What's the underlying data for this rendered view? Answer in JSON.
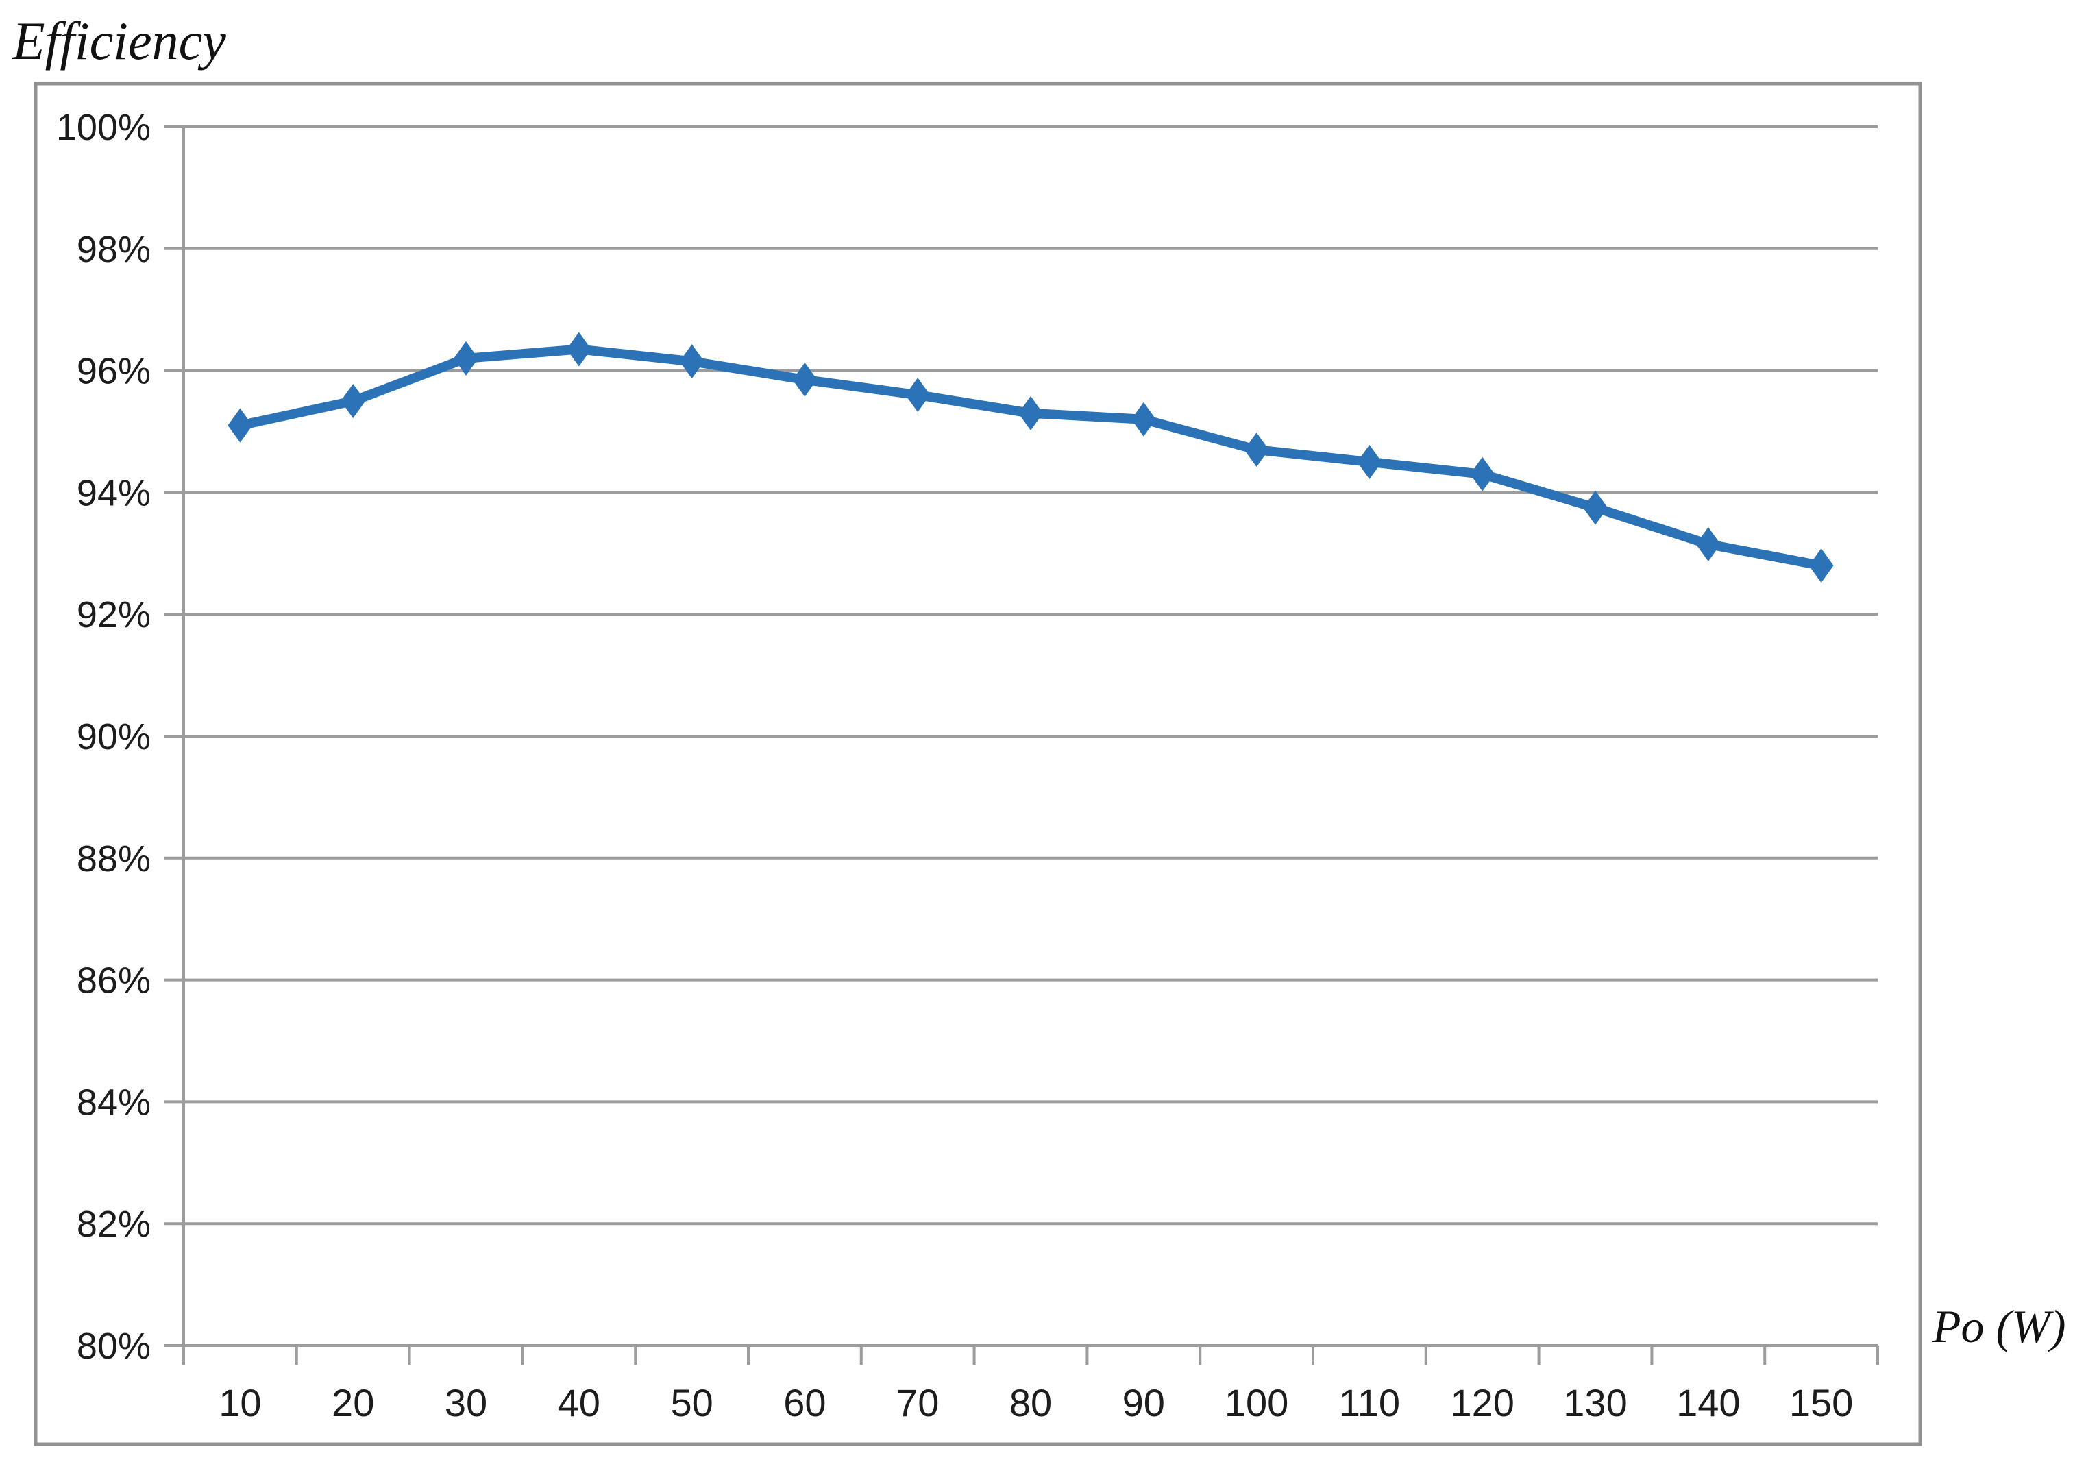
{
  "chart": {
    "title": "Efficiency",
    "x_axis_label": "Po (W)"
  },
  "chart_data": {
    "type": "line",
    "title": "Efficiency",
    "xlabel": "Po (W)",
    "ylabel": "Efficiency",
    "x": [
      10,
      20,
      30,
      40,
      50,
      60,
      70,
      80,
      90,
      100,
      110,
      120,
      130,
      140,
      150
    ],
    "series": [
      {
        "name": "Efficiency",
        "values": [
          95.1,
          95.5,
          96.2,
          96.35,
          96.15,
          95.85,
          95.6,
          95.3,
          95.2,
          94.7,
          94.5,
          94.3,
          93.75,
          93.15,
          92.8
        ]
      }
    ],
    "ylim": [
      80,
      100
    ],
    "y_tick_step": 2,
    "y_ticks": [
      "100%",
      "98%",
      "96%",
      "94%",
      "92%",
      "90%",
      "88%",
      "86%",
      "84%",
      "82%",
      "80%"
    ],
    "grid": "horizontal",
    "legend": "none",
    "marker": "diamond",
    "colors": {
      "line": "#2B73B6",
      "grid": "#9C9C9C",
      "border": "#919191",
      "text": "#1C1C1C",
      "background": "#FFFFFF"
    }
  }
}
